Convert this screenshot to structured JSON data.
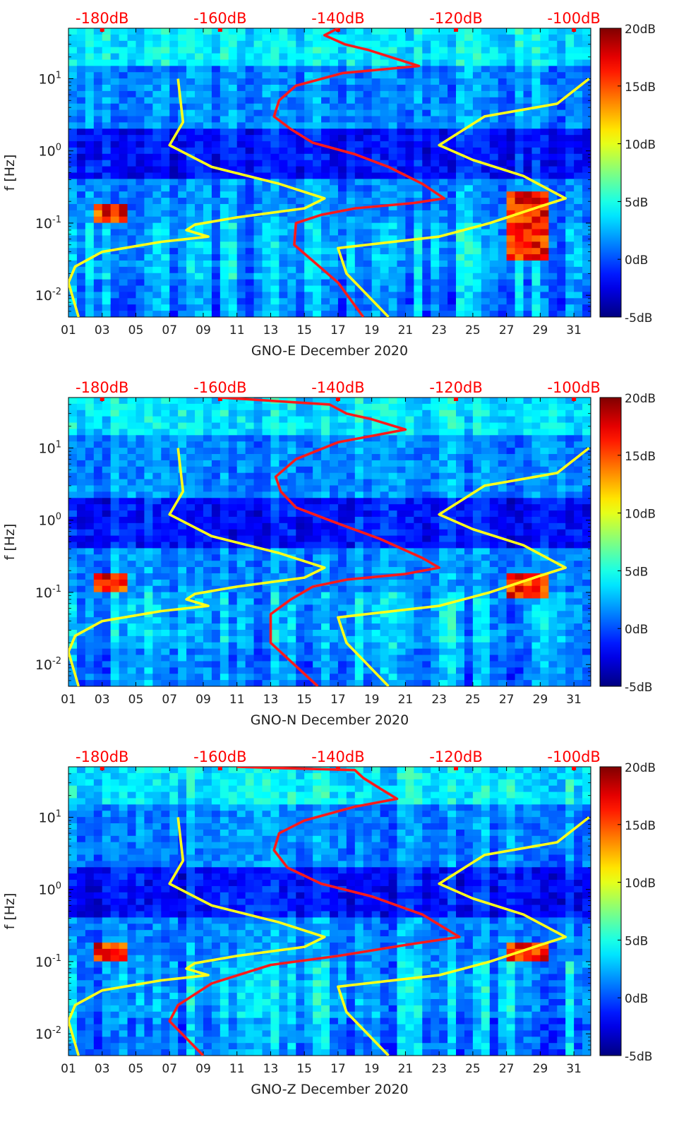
{
  "colorbar": {
    "tick_labels": [
      "20dB",
      "15dB",
      "10dB",
      "5dB",
      "0dB",
      "-5dB"
    ],
    "range_db": [
      -5,
      20
    ],
    "colormap": "jet"
  },
  "colors": {
    "psd_curve": "#ff1a1a",
    "noise_model": "#ffff1a",
    "top_axis_labels": "#ff0000",
    "background_dark": "#000090",
    "background_mid": "#1e6cff"
  },
  "chart_data": [
    {
      "type": "heatmap",
      "xlabel": "GNO-E December 2020",
      "ylabel": "f [Hz]",
      "x_tick_labels": [
        "01",
        "03",
        "05",
        "07",
        "09",
        "11",
        "13",
        "15",
        "17",
        "19",
        "21",
        "23",
        "25",
        "27",
        "29",
        "31"
      ],
      "x_range_days": [
        1,
        32
      ],
      "y_scale": "log",
      "y_tick_labels": [
        "10^-2",
        "10^-1",
        "10^0",
        "10^1"
      ],
      "y_range_hz": [
        0.005,
        50
      ],
      "top_axis_labels": [
        "-180dB",
        "-160dB",
        "-140dB",
        "-120dB",
        "-100dB"
      ],
      "top_axis_days": [
        3,
        10,
        17,
        24,
        31
      ],
      "high_power_regions": [
        {
          "day_range": [
            2.6,
            4.5
          ],
          "freq_range_hz": [
            0.1,
            0.2
          ]
        },
        {
          "day_range": [
            26.8,
            29.3
          ],
          "freq_range_hz": [
            0.03,
            0.25
          ]
        }
      ],
      "series": [
        {
          "role": "red_psd_curve",
          "points_day_hz": [
            [
              17.0,
              50
            ],
            [
              16.2,
              40
            ],
            [
              17.4,
              30
            ],
            [
              18.8,
              25
            ],
            [
              21.8,
              15
            ],
            [
              17.3,
              12
            ],
            [
              14.5,
              8
            ],
            [
              13.5,
              5
            ],
            [
              13.2,
              3
            ],
            [
              14.2,
              2
            ],
            [
              15.5,
              1.3
            ],
            [
              18.0,
              0.9
            ],
            [
              20.0,
              0.6
            ],
            [
              22.0,
              0.35
            ],
            [
              23.3,
              0.22
            ],
            [
              21.5,
              0.19
            ],
            [
              18.0,
              0.16
            ],
            [
              16.0,
              0.13
            ],
            [
              14.5,
              0.1
            ],
            [
              14.4,
              0.05
            ],
            [
              15.5,
              0.03
            ],
            [
              17.0,
              0.015
            ],
            [
              18.5,
              0.005
            ]
          ]
        },
        {
          "role": "yellow_low_noise_model",
          "points_day_hz": [
            [
              7.5,
              10
            ],
            [
              7.8,
              2.5
            ],
            [
              7.0,
              1.2
            ],
            [
              9.5,
              0.6
            ],
            [
              13.5,
              0.35
            ],
            [
              16.2,
              0.22
            ],
            [
              15.0,
              0.16
            ],
            [
              11.0,
              0.12
            ],
            [
              8.5,
              0.095
            ],
            [
              8.0,
              0.08
            ],
            [
              9.3,
              0.065
            ],
            [
              6.5,
              0.055
            ],
            [
              3.0,
              0.04
            ],
            [
              1.4,
              0.025
            ],
            [
              1.0,
              0.015
            ],
            [
              1.6,
              0.005
            ]
          ]
        },
        {
          "role": "yellow_high_noise_model",
          "points_day_hz": [
            [
              31.9,
              10
            ],
            [
              30.0,
              4.5
            ],
            [
              25.7,
              3.0
            ],
            [
              23.0,
              1.2
            ],
            [
              25.0,
              0.75
            ],
            [
              28.0,
              0.45
            ],
            [
              30.5,
              0.22
            ],
            [
              29.0,
              0.17
            ],
            [
              26.0,
              0.1
            ],
            [
              23.0,
              0.065
            ],
            [
              17.0,
              0.045
            ],
            [
              17.5,
              0.02
            ],
            [
              20.0,
              0.005
            ]
          ]
        }
      ]
    },
    {
      "type": "heatmap",
      "xlabel": "GNO-N December 2020",
      "ylabel": "f [Hz]",
      "x_tick_labels": [
        "01",
        "03",
        "05",
        "07",
        "09",
        "11",
        "13",
        "15",
        "17",
        "19",
        "21",
        "23",
        "25",
        "27",
        "29",
        "31"
      ],
      "x_range_days": [
        1,
        32
      ],
      "y_scale": "log",
      "y_tick_labels": [
        "10^-2",
        "10^-1",
        "10^0",
        "10^1"
      ],
      "y_range_hz": [
        0.005,
        50
      ],
      "top_axis_labels": [
        "-180dB",
        "-160dB",
        "-140dB",
        "-120dB",
        "-100dB"
      ],
      "top_axis_days": [
        3,
        10,
        17,
        24,
        31
      ],
      "high_power_regions": [
        {
          "day_range": [
            2.6,
            4.5
          ],
          "freq_range_hz": [
            0.1,
            0.2
          ]
        },
        {
          "day_range": [
            26.8,
            29.3
          ],
          "freq_range_hz": [
            0.09,
            0.18
          ]
        }
      ],
      "series": [
        {
          "role": "red_psd_curve",
          "points_day_hz": [
            [
              10.0,
              50
            ],
            [
              16.5,
              40
            ],
            [
              17.5,
              30
            ],
            [
              19.0,
              25
            ],
            [
              21.0,
              18
            ],
            [
              17.0,
              12
            ],
            [
              14.5,
              7
            ],
            [
              13.3,
              4
            ],
            [
              13.6,
              2.5
            ],
            [
              14.5,
              1.5
            ],
            [
              17.0,
              0.9
            ],
            [
              19.5,
              0.55
            ],
            [
              22.0,
              0.3
            ],
            [
              23.0,
              0.22
            ],
            [
              21.0,
              0.18
            ],
            [
              17.5,
              0.15
            ],
            [
              15.5,
              0.12
            ],
            [
              14.2,
              0.08
            ],
            [
              13.0,
              0.05
            ],
            [
              13.0,
              0.02
            ],
            [
              15.8,
              0.005
            ]
          ]
        },
        {
          "role": "yellow_low_noise_model",
          "points_day_hz": [
            [
              7.5,
              10
            ],
            [
              7.8,
              2.5
            ],
            [
              7.0,
              1.2
            ],
            [
              9.5,
              0.6
            ],
            [
              13.5,
              0.35
            ],
            [
              16.2,
              0.22
            ],
            [
              15.0,
              0.16
            ],
            [
              11.0,
              0.12
            ],
            [
              8.5,
              0.095
            ],
            [
              8.0,
              0.08
            ],
            [
              9.3,
              0.065
            ],
            [
              6.5,
              0.055
            ],
            [
              3.0,
              0.04
            ],
            [
              1.4,
              0.025
            ],
            [
              1.0,
              0.015
            ],
            [
              1.6,
              0.005
            ]
          ]
        },
        {
          "role": "yellow_high_noise_model",
          "points_day_hz": [
            [
              31.9,
              10
            ],
            [
              30.0,
              4.5
            ],
            [
              25.7,
              3.0
            ],
            [
              23.0,
              1.2
            ],
            [
              25.0,
              0.75
            ],
            [
              28.0,
              0.45
            ],
            [
              30.5,
              0.22
            ],
            [
              29.0,
              0.17
            ],
            [
              26.0,
              0.1
            ],
            [
              23.0,
              0.065
            ],
            [
              17.0,
              0.045
            ],
            [
              17.5,
              0.02
            ],
            [
              20.0,
              0.005
            ]
          ]
        }
      ]
    },
    {
      "type": "heatmap",
      "xlabel": "GNO-Z December 2020",
      "ylabel": "f [Hz]",
      "x_tick_labels": [
        "01",
        "03",
        "05",
        "07",
        "09",
        "11",
        "13",
        "15",
        "17",
        "19",
        "21",
        "23",
        "25",
        "27",
        "29",
        "31"
      ],
      "x_range_days": [
        1,
        32
      ],
      "y_scale": "log",
      "y_tick_labels": [
        "10^-2",
        "10^-1",
        "10^0",
        "10^1"
      ],
      "y_range_hz": [
        0.005,
        50
      ],
      "top_axis_labels": [
        "-180dB",
        "-160dB",
        "-140dB",
        "-120dB",
        "-100dB"
      ],
      "top_axis_days": [
        3,
        10,
        17,
        24,
        31
      ],
      "high_power_regions": [
        {
          "day_range": [
            2.6,
            4.5
          ],
          "freq_range_hz": [
            0.1,
            0.2
          ]
        },
        {
          "day_range": [
            26.8,
            29.3
          ],
          "freq_range_hz": [
            0.1,
            0.2
          ]
        }
      ],
      "series": [
        {
          "role": "red_psd_curve",
          "points_day_hz": [
            [
              11.0,
              50
            ],
            [
              18.0,
              45
            ],
            [
              18.5,
              35
            ],
            [
              19.5,
              25
            ],
            [
              20.5,
              18
            ],
            [
              18.0,
              14
            ],
            [
              15.0,
              9
            ],
            [
              13.5,
              6
            ],
            [
              13.2,
              3.5
            ],
            [
              14.0,
              2
            ],
            [
              16.0,
              1.2
            ],
            [
              19.0,
              0.8
            ],
            [
              22.0,
              0.45
            ],
            [
              24.2,
              0.22
            ],
            [
              21.0,
              0.17
            ],
            [
              17.0,
              0.12
            ],
            [
              13.0,
              0.09
            ],
            [
              9.5,
              0.05
            ],
            [
              7.5,
              0.025
            ],
            [
              7.0,
              0.015
            ],
            [
              9.0,
              0.005
            ]
          ]
        },
        {
          "role": "yellow_low_noise_model",
          "points_day_hz": [
            [
              7.5,
              10
            ],
            [
              7.8,
              2.5
            ],
            [
              7.0,
              1.2
            ],
            [
              9.5,
              0.6
            ],
            [
              13.5,
              0.35
            ],
            [
              16.2,
              0.22
            ],
            [
              15.0,
              0.16
            ],
            [
              11.0,
              0.12
            ],
            [
              8.5,
              0.095
            ],
            [
              8.0,
              0.08
            ],
            [
              9.3,
              0.065
            ],
            [
              6.5,
              0.055
            ],
            [
              3.0,
              0.04
            ],
            [
              1.4,
              0.025
            ],
            [
              1.0,
              0.015
            ],
            [
              1.6,
              0.005
            ]
          ]
        },
        {
          "role": "yellow_high_noise_model",
          "points_day_hz": [
            [
              31.9,
              10
            ],
            [
              30.0,
              4.5
            ],
            [
              25.7,
              3.0
            ],
            [
              23.0,
              1.2
            ],
            [
              25.0,
              0.75
            ],
            [
              28.0,
              0.45
            ],
            [
              30.5,
              0.22
            ],
            [
              29.0,
              0.17
            ],
            [
              26.0,
              0.1
            ],
            [
              23.0,
              0.065
            ],
            [
              17.0,
              0.045
            ],
            [
              17.5,
              0.02
            ],
            [
              20.0,
              0.005
            ]
          ]
        }
      ]
    }
  ]
}
